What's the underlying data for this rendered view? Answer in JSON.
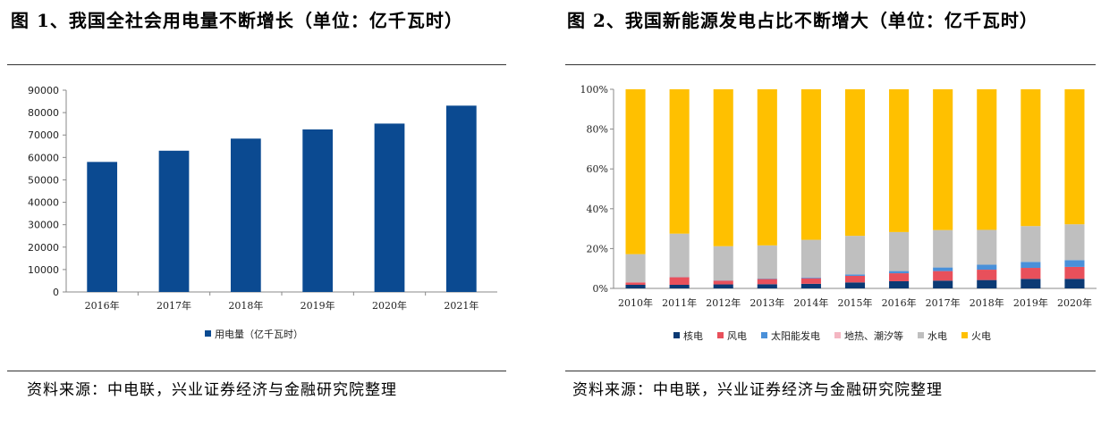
{
  "left": {
    "title": "图 1、我国全社会用电量不断增长（单位：亿千瓦时）",
    "source": "资料来源：中电联，兴业证券经济与金融研究院整理"
  },
  "right": {
    "title": "图 2、我国新能源发电占比不断增大（单位：亿千瓦时）",
    "source": "资料来源：中电联，兴业证券经济与金融研究院整理"
  },
  "chart_data": [
    {
      "type": "bar",
      "categories": [
        "2016年",
        "2017年",
        "2018年",
        "2019年",
        "2020年",
        "2021年"
      ],
      "series": [
        {
          "name": "用电量（亿千瓦时）",
          "values": [
            58000,
            63000,
            68400,
            72500,
            75100,
            83100
          ],
          "color": "#0b4a91"
        }
      ],
      "ylim": [
        0,
        90000
      ],
      "yticks": [
        "0",
        "10000",
        "20000",
        "30000",
        "40000",
        "50000",
        "60000",
        "70000",
        "80000",
        "90000"
      ],
      "legend_position": "bottom"
    },
    {
      "type": "bar",
      "stacked": true,
      "categories": [
        "2010年",
        "2011年",
        "2012年",
        "2013年",
        "2014年",
        "2015年",
        "2016年",
        "2017年",
        "2018年",
        "2019年",
        "2020年"
      ],
      "series": [
        {
          "name": "核电",
          "color": "#0b3a74",
          "values": [
            1.8,
            1.8,
            2.0,
            2.1,
            2.3,
            3.0,
            3.6,
            3.9,
            4.2,
            4.8,
            4.8
          ]
        },
        {
          "name": "风电",
          "color": "#e8505b",
          "values": [
            1.2,
            3.8,
            1.9,
            2.6,
            2.8,
            3.3,
            4.0,
            4.8,
            5.2,
            5.5,
            6.0
          ]
        },
        {
          "name": "太阳能发电",
          "color": "#4a90d9",
          "values": [
            0.0,
            0.1,
            0.1,
            0.2,
            0.4,
            0.7,
            1.1,
            1.8,
            2.5,
            3.0,
            3.4
          ]
        },
        {
          "name": "地热、潮汐等",
          "color": "#f4b6c2",
          "values": [
            0.0,
            0.0,
            0.0,
            0.0,
            0.0,
            0.0,
            0.0,
            0.0,
            0.0,
            0.0,
            0.0
          ]
        },
        {
          "name": "水电",
          "color": "#bfbfbf",
          "values": [
            14.2,
            21.8,
            17.2,
            16.7,
            18.9,
            19.4,
            19.6,
            18.8,
            17.5,
            18.0,
            18.0
          ]
        },
        {
          "name": "火电",
          "color": "#ffc000",
          "values": [
            82.8,
            72.5,
            78.8,
            78.4,
            75.6,
            73.6,
            71.7,
            70.7,
            70.6,
            68.7,
            67.8
          ]
        }
      ],
      "ylim": [
        0,
        100
      ],
      "yticks": [
        "0%",
        "20%",
        "40%",
        "60%",
        "80%",
        "100%"
      ],
      "legend_position": "bottom"
    }
  ]
}
